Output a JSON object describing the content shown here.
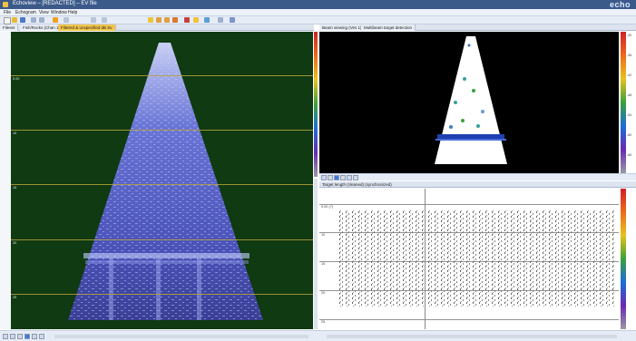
{
  "window": {
    "title": "Echoview – [REDACTED] – EV file",
    "brand": "echo"
  },
  "menu": {
    "items": [
      "File",
      "Echogram",
      "View",
      "Window",
      "Help"
    ]
  },
  "tabs_left": [
    {
      "label": "Fileset",
      "active": false
    },
    {
      "label": "Fish/Rocks (Chan 1)",
      "active": false
    },
    {
      "label": "Filtered & unspecified dB Sv",
      "active": true
    }
  ],
  "tabs_right": [
    {
      "label": "Beam viewing (Ves 1)",
      "active": false
    },
    {
      "label": "Multibeam target detection",
      "active": false
    }
  ],
  "echogram_left": {
    "range_labels": [
      "5.00",
      "10",
      "15",
      "20",
      "25"
    ],
    "colors": {
      "background": "#0f3a12",
      "beam": "#5566d8",
      "grid": "#b9a23a"
    }
  },
  "echogram_right_top": {
    "colors": {
      "background": "#000000",
      "beam": "#ffffff"
    }
  },
  "echogram_right_bottom": {
    "title": "Target length (cleaned) (synchronized)",
    "depth_labels": [
      "5.00 (?)",
      "10",
      "15",
      "20",
      "25"
    ],
    "colors": {
      "background": "#ffffff",
      "points": "#111111"
    }
  },
  "colorbar_ticks": [
    "-30",
    "-36",
    "-42",
    "-48",
    "-54",
    "-60",
    "-66"
  ],
  "status": {
    "nav_buttons": [
      "first",
      "prev",
      "play",
      "stop",
      "next",
      "last"
    ]
  }
}
